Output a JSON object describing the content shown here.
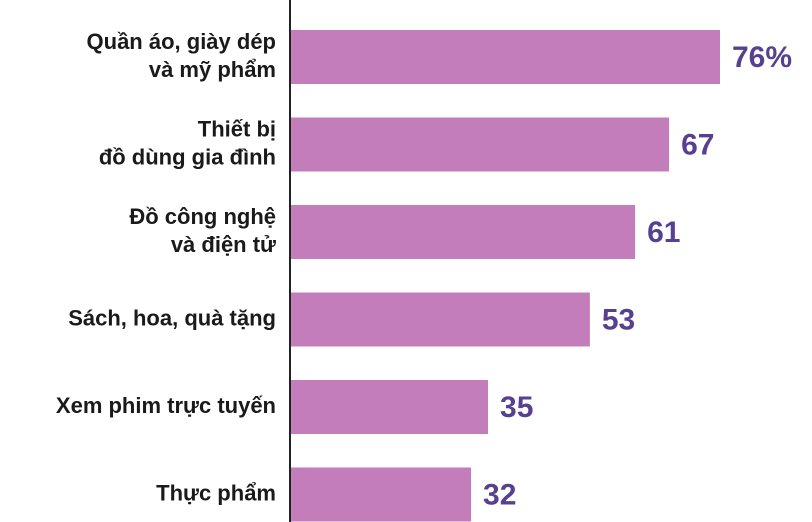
{
  "chart_data": {
    "type": "bar",
    "orientation": "horizontal",
    "categories": [
      "Quần áo, giày dép\nvà mỹ phẩm",
      "Thiết bị\nđồ dùng gia đình",
      "Đồ công nghệ\nvà điện tử",
      "Sách, hoa, quà tặng",
      "Xem phim trực tuyến",
      "Thực phẩm"
    ],
    "values": [
      76,
      67,
      61,
      53,
      35,
      32
    ],
    "value_labels": [
      "76%",
      "67",
      "61",
      "53",
      "35",
      "32"
    ],
    "color": "#c37dba",
    "label_color": "#57408f"
  }
}
